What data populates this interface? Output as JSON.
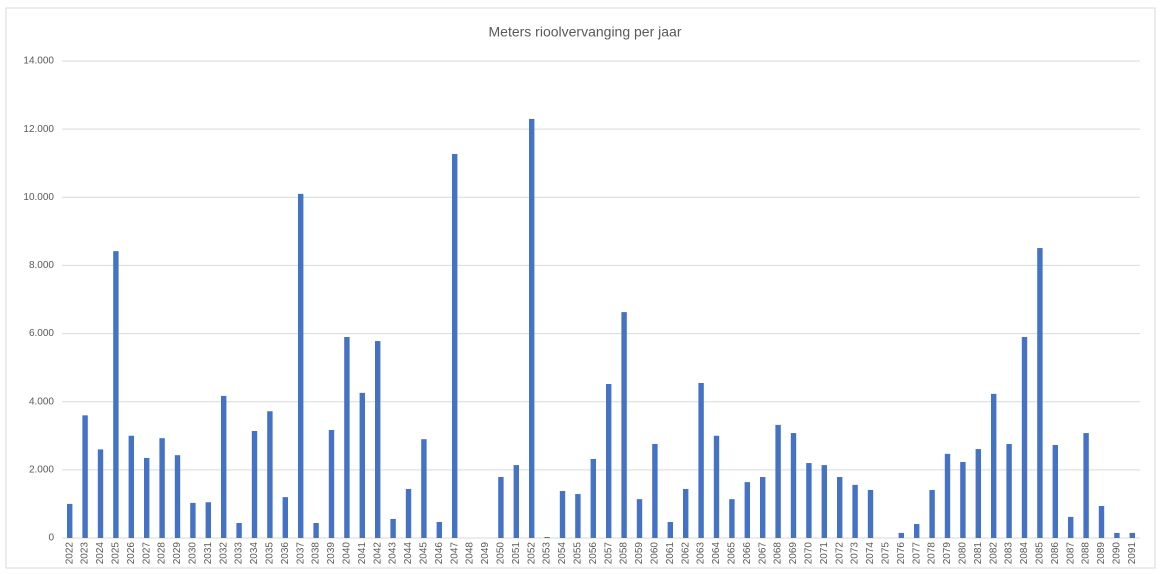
{
  "chart_data": {
    "type": "bar",
    "title": "Meters rioolvervanging per jaar",
    "categories": [
      "2022",
      "2023",
      "2024",
      "2025",
      "2026",
      "2027",
      "2028",
      "2029",
      "2030",
      "2031",
      "2032",
      "2033",
      "2034",
      "2035",
      "2036",
      "2037",
      "2038",
      "2039",
      "2040",
      "2041",
      "2042",
      "2043",
      "2044",
      "2045",
      "2046",
      "2047",
      "2048",
      "2049",
      "2050",
      "2051",
      "2052",
      "2053",
      "2054",
      "2055",
      "2056",
      "2057",
      "2058",
      "2059",
      "2060",
      "2061",
      "2062",
      "2063",
      "2064",
      "2065",
      "2066",
      "2067",
      "2068",
      "2069",
      "2070",
      "2071",
      "2072",
      "2073",
      "2074",
      "2075",
      "2076",
      "2077",
      "2078",
      "2079",
      "2080",
      "2081",
      "2082",
      "2083",
      "2084",
      "2085",
      "2086",
      "2087",
      "2088",
      "2089",
      "2090",
      "2091"
    ],
    "values": [
      1000,
      3600,
      2600,
      8420,
      3000,
      2350,
      2930,
      2430,
      1030,
      1050,
      4170,
      440,
      3140,
      3720,
      1200,
      10100,
      440,
      3170,
      5900,
      4260,
      5780,
      560,
      1440,
      2900,
      470,
      11270,
      0,
      0,
      1790,
      2140,
      12300,
      30,
      1380,
      1290,
      2320,
      4520,
      6630,
      1140,
      2760,
      470,
      1440,
      4550,
      3000,
      1140,
      1640,
      1790,
      3320,
      3080,
      2200,
      2140,
      1790,
      1560,
      1410,
      0,
      150,
      410,
      1410,
      2470,
      2230,
      2610,
      4230,
      2760,
      5900,
      8510,
      2730,
      620,
      3080,
      940,
      150,
      150
    ],
    "color": "#4472c4",
    "ylim": [
      0,
      14000
    ],
    "yticks": [
      0,
      {
        "value": 2000,
        "label": "2.000"
      },
      {
        "value": 4000,
        "label": "4.000"
      },
      {
        "value": 6000,
        "label": "6.000"
      },
      {
        "value": 8000,
        "label": "8.000"
      },
      {
        "value": 10000,
        "label": "10.000"
      },
      {
        "value": 12000,
        "label": "12.000"
      },
      {
        "value": 14000,
        "label": "14.000"
      }
    ],
    "grid": true
  }
}
